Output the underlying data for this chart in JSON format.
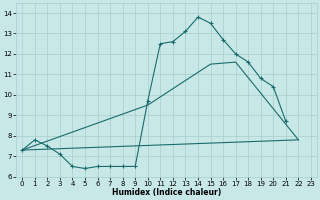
{
  "xlabel": "Humidex (Indice chaleur)",
  "bg_color": "#c8e8e8",
  "grid_color": "#a8cccc",
  "line_color": "#1a6b6b",
  "line1_x": [
    0,
    1,
    2,
    3,
    4,
    5,
    6,
    7,
    8,
    9,
    10,
    11,
    12,
    13,
    14,
    15,
    16,
    17,
    18,
    19,
    20,
    21,
    22
  ],
  "line1_y": [
    7.3,
    7.8,
    7.5,
    7.1,
    6.5,
    6.4,
    6.5,
    6.5,
    6.5,
    6.5,
    9.7,
    12.5,
    12.6,
    13.1,
    13.8,
    13.5,
    12.7,
    12.0,
    11.6,
    10.8,
    10.4,
    8.7,
    null
  ],
  "line2_x": [
    0,
    10,
    15,
    17,
    22
  ],
  "line2_y": [
    7.3,
    9.5,
    11.5,
    11.6,
    7.8
  ],
  "line3_x": [
    0,
    22
  ],
  "line3_y": [
    7.3,
    7.8
  ],
  "xlim": [
    -0.5,
    23.5
  ],
  "ylim": [
    6.0,
    14.5
  ],
  "yticks": [
    6,
    7,
    8,
    9,
    10,
    11,
    12,
    13,
    14
  ],
  "xticks": [
    0,
    1,
    2,
    3,
    4,
    5,
    6,
    7,
    8,
    9,
    10,
    11,
    12,
    13,
    14,
    15,
    16,
    17,
    18,
    19,
    20,
    21,
    22,
    23
  ]
}
